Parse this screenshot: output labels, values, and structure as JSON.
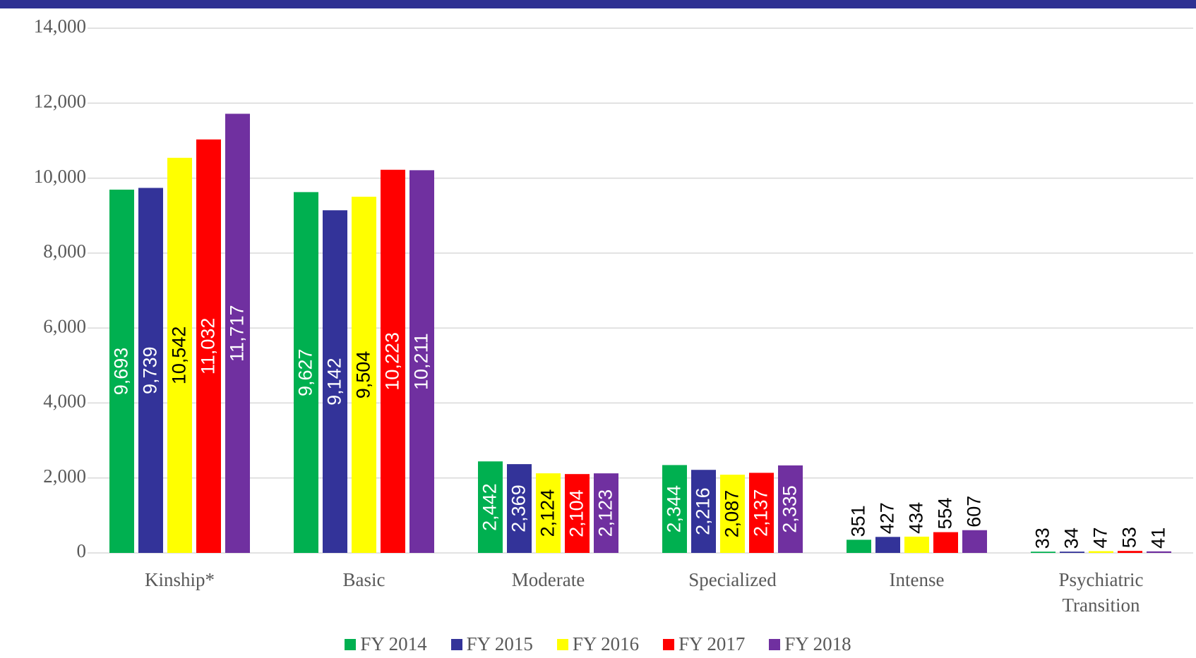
{
  "chart_data": {
    "type": "bar",
    "categories": [
      "Kinship*",
      "Basic",
      "Moderate",
      "Specialized",
      "Intense",
      "Psychiatric Transition"
    ],
    "series": [
      {
        "name": "FY 2014",
        "color": "#00b050",
        "values": [
          9693,
          9627,
          2442,
          2344,
          351,
          33
        ],
        "value_labels": [
          "9,693",
          "9,627",
          "2,442",
          "2,344",
          "351",
          "33"
        ]
      },
      {
        "name": "FY 2015",
        "color": "#333399",
        "values": [
          9739,
          9142,
          2369,
          2216,
          427,
          34
        ],
        "value_labels": [
          "9,739",
          "9,142",
          "2,369",
          "2,216",
          "427",
          "34"
        ]
      },
      {
        "name": "FY 2016",
        "color": "#ffff00",
        "values": [
          10542,
          9504,
          2124,
          2087,
          434,
          47
        ],
        "value_labels": [
          "10,542",
          "9,504",
          "2,124",
          "2,087",
          "434",
          "47"
        ]
      },
      {
        "name": "FY 2017",
        "color": "#ff0000",
        "values": [
          11032,
          10223,
          2104,
          2137,
          554,
          53
        ],
        "value_labels": [
          "11,032",
          "10,223",
          "2,104",
          "2,137",
          "554",
          "53"
        ]
      },
      {
        "name": "FY 2018",
        "color": "#7030a0",
        "values": [
          11717,
          10211,
          2123,
          2335,
          607,
          41
        ],
        "value_labels": [
          "11,717",
          "10,211",
          "2,123",
          "2,335",
          "607",
          "41"
        ]
      }
    ],
    "ylim": [
      0,
      14000
    ],
    "yticks": [
      0,
      {
        "value": 2000,
        "label": "2,000"
      },
      {
        "value": 4000,
        "label": "4,000"
      },
      {
        "value": 6000,
        "label": "6,000"
      },
      {
        "value": 8000,
        "label": "8,000"
      },
      {
        "value": 10000,
        "label": "10,000"
      },
      {
        "value": 12000,
        "label": "12,000"
      },
      {
        "value": 14000,
        "label": "14,000"
      }
    ],
    "grid": true,
    "legend": "bottom"
  }
}
